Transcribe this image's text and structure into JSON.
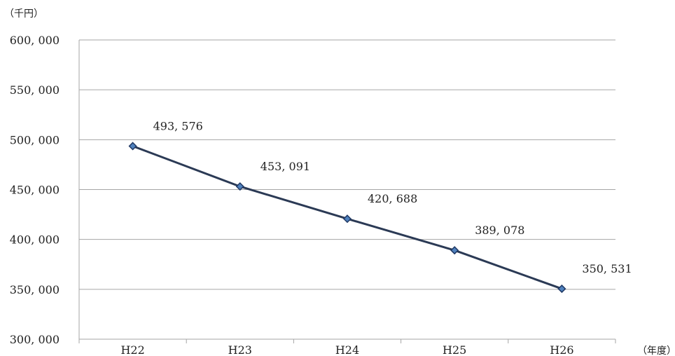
{
  "chart_data": {
    "type": "line",
    "y_unit_label": "（千円）",
    "x_unit_label": "（年度）",
    "categories": [
      "H22",
      "H23",
      "H24",
      "H25",
      "H26"
    ],
    "series": [
      {
        "values": [
          493576,
          453091,
          420688,
          389078,
          350531
        ],
        "value_labels": [
          "493, 576",
          "453, 091",
          "420, 688",
          "389, 078",
          "350, 531"
        ]
      }
    ],
    "ylim": [
      300000,
      600000
    ],
    "y_ticks": [
      300000,
      350000,
      400000,
      450000,
      500000,
      550000,
      600000
    ],
    "y_tick_labels": [
      "300, 000",
      "350, 000",
      "400, 000",
      "450, 000",
      "500, 000",
      "550, 000",
      "600, 000"
    ],
    "grid": "horizontal",
    "legend": "none",
    "colors": {
      "line": "#2b3a55",
      "marker": "#4f81bd",
      "marker_edge": "#1f3864",
      "grid": "#a6a6a6"
    }
  }
}
